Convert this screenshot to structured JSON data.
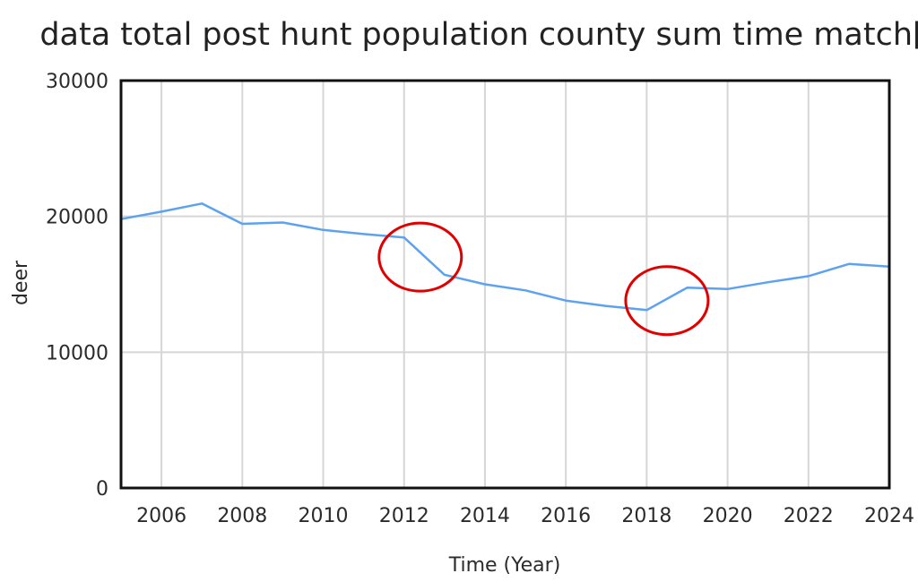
{
  "chart_data": {
    "type": "line",
    "title": "data total post hunt population county sum time match[",
    "xlabel": "Time (Year)",
    "ylabel": "deer",
    "xlim": [
      2005,
      2024
    ],
    "ylim": [
      0,
      30000
    ],
    "x_ticks": [
      "2006",
      "2008",
      "2010",
      "2012",
      "2014",
      "2016",
      "2018",
      "2020",
      "2022",
      "2024"
    ],
    "y_ticks": [
      "0",
      "10000",
      "20000",
      "30000"
    ],
    "grid": true,
    "series": [
      {
        "color": "#5da2f0",
        "x": [
          2005,
          2006,
          2007,
          2008,
          2009,
          2010,
          2011,
          2012,
          2013,
          2014,
          2015,
          2016,
          2017,
          2018,
          2019,
          2020,
          2021,
          2022,
          2023,
          2024
        ],
        "y": [
          19800,
          20350,
          20950,
          19450,
          19550,
          19000,
          18700,
          18450,
          15700,
          15000,
          14550,
          13800,
          13400,
          13100,
          14750,
          14650,
          15150,
          15600,
          16500,
          16300
        ]
      }
    ],
    "annotations": [
      {
        "type": "circle",
        "color": "#e00000",
        "x": 2012.4,
        "y": 17000
      },
      {
        "type": "circle",
        "color": "#e00000",
        "x": 2018.5,
        "y": 13800
      }
    ]
  }
}
